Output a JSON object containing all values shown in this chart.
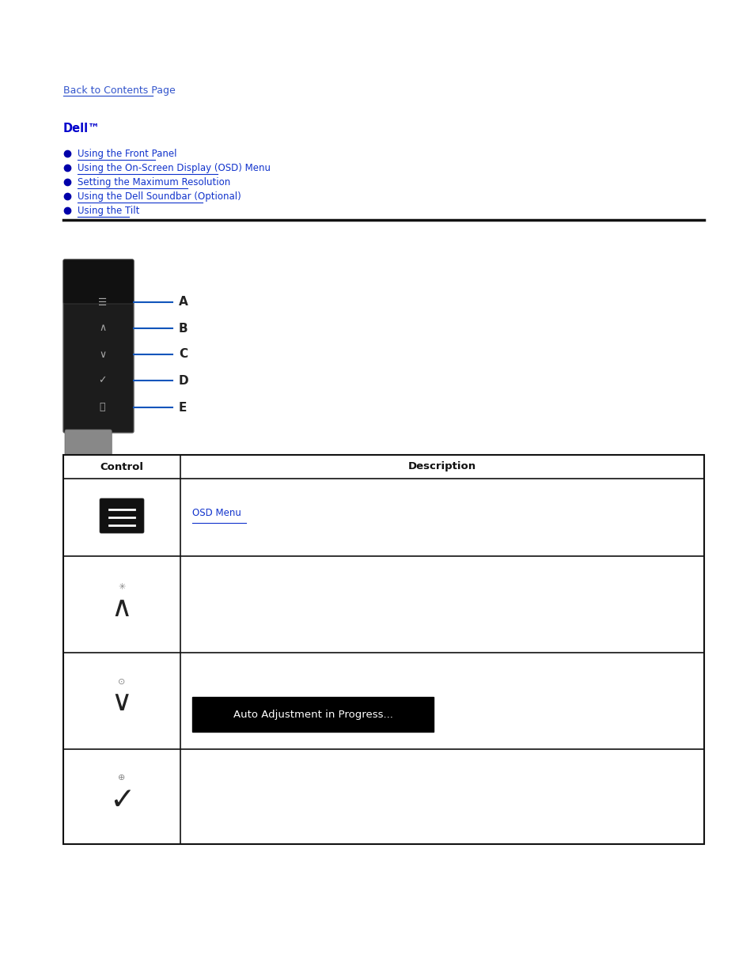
{
  "bg_color": "#ffffff",
  "top_link_text": "Back to Contents Page",
  "top_link_color": "#3355cc",
  "dell_brand_text": "Dell™",
  "dell_brand_color": "#0000cc",
  "nav_items": [
    "Using the Front Panel",
    "Using the On-Screen Display (OSD) Menu",
    "Setting the Maximum Resolution",
    "Using the Dell Soundbar (Optional)",
    "Using the Tilt"
  ],
  "nav_link_color": "#1133cc",
  "nav_bullet_color": "#0000aa",
  "divider_color": "#111111",
  "panel_dark": "#1c1c1c",
  "panel_top": "#111111",
  "stand_color": "#888888",
  "label_line_color": "#1155bb",
  "table_border": "#111111",
  "auto_adj_text": "Auto Adjustment in Progress...",
  "link_blue": "#1133cc"
}
